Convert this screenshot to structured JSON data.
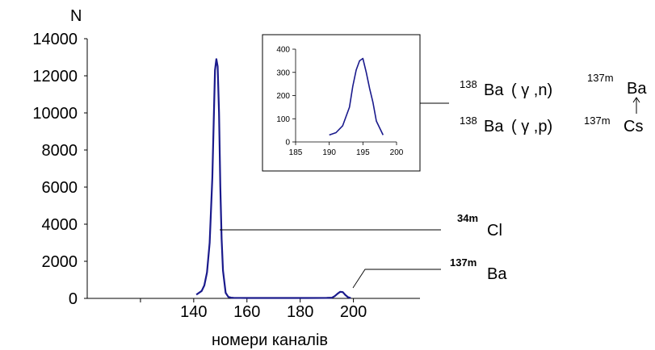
{
  "chart_data": [
    {
      "type": "line",
      "ylabel": "N",
      "xlabel": "номери каналів",
      "xlim": [
        100,
        225
      ],
      "ylim": [
        0,
        14000
      ],
      "x_ticks": [
        "140",
        "160",
        "180",
        "200"
      ],
      "y_ticks": [
        "0",
        "2000",
        "4000",
        "6000",
        "8000",
        "10000",
        "12000",
        "14000"
      ],
      "series": [
        {
          "color": "#1a1a8c",
          "x": [
            141,
            143,
            144,
            145,
            146,
            147,
            147.5,
            148,
            148.5,
            149,
            149.5,
            150,
            150.5,
            151,
            152,
            153,
            154,
            155,
            160,
            170,
            180,
            190,
            192,
            193,
            194,
            195,
            196,
            197,
            198,
            199
          ],
          "y": [
            200,
            400,
            700,
            1400,
            3000,
            6500,
            9500,
            12300,
            12900,
            12500,
            10000,
            6000,
            3200,
            1500,
            300,
            80,
            40,
            30,
            20,
            20,
            20,
            25,
            40,
            120,
            250,
            350,
            340,
            180,
            60,
            20
          ]
        }
      ],
      "annotations": [
        {
          "mass": "34m",
          "element": "Cl"
        },
        {
          "mass": "137m",
          "element": "Ba"
        }
      ]
    },
    {
      "type": "line",
      "xlim": [
        185,
        200
      ],
      "ylim": [
        0,
        400
      ],
      "x_ticks": [
        "185",
        "190",
        "195",
        "200"
      ],
      "y_ticks": [
        "0",
        "100",
        "200",
        "300",
        "400"
      ],
      "series": [
        {
          "color": "#1a1a8c",
          "x": [
            190,
            191,
            192,
            193,
            193.5,
            194,
            194.5,
            195,
            195.5,
            196,
            196.5,
            197,
            198
          ],
          "y": [
            30,
            40,
            70,
            150,
            240,
            310,
            350,
            360,
            300,
            230,
            170,
            90,
            30
          ]
        }
      ],
      "reactions": [
        {
          "target_mass": "138",
          "target": "Ba",
          "particles": "( γ ,n)",
          "product_mass": "137m",
          "product": "Ba"
        },
        {
          "target_mass": "138",
          "target": "Ba",
          "particles": "( γ ,p)",
          "product_mass": "137m",
          "product": "Cs"
        }
      ]
    }
  ]
}
